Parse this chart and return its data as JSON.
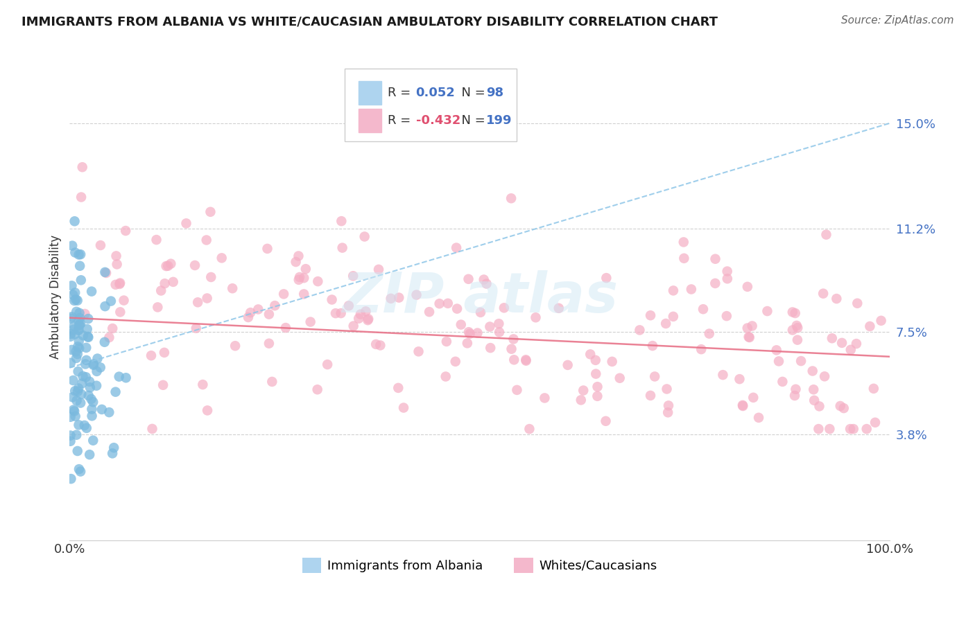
{
  "title": "IMMIGRANTS FROM ALBANIA VS WHITE/CAUCASIAN AMBULATORY DISABILITY CORRELATION CHART",
  "source": "Source: ZipAtlas.com",
  "ylabel": "Ambulatory Disability",
  "xlim": [
    0,
    1.0
  ],
  "ylim": [
    0.0,
    0.175
  ],
  "yticks": [
    0.038,
    0.075,
    0.112,
    0.15
  ],
  "ytick_labels": [
    "3.8%",
    "7.5%",
    "11.2%",
    "15.0%"
  ],
  "xticks": [
    0.0,
    1.0
  ],
  "xtick_labels": [
    "0.0%",
    "100.0%"
  ],
  "color_blue_scatter": "#7ab9de",
  "color_pink_scatter": "#f5aec4",
  "color_blue_line": "#8ec6e8",
  "color_pink_line": "#e8748a",
  "watermark_color": "#d0e8f5",
  "background_color": "#ffffff",
  "blue_R": 0.052,
  "pink_R": -0.432,
  "blue_N": 98,
  "pink_N": 199,
  "blue_line_y0": 0.062,
  "blue_line_y1": 0.15,
  "pink_line_y0": 0.08,
  "pink_line_y1": 0.066,
  "legend_blue_color": "#aed4ef",
  "legend_pink_color": "#f4b8cc",
  "legend_r_color": "#4472c4",
  "legend_pink_r_color": "#e05070",
  "legend_n_color": "#4472c4"
}
